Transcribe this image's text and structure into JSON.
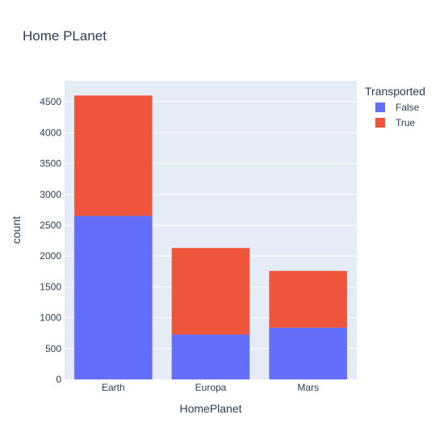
{
  "chart_data": {
    "type": "bar",
    "barmode": "stack",
    "title": "Home PLanet",
    "xlabel": "HomePlanet",
    "ylabel": "count",
    "categories": [
      "Earth",
      "Europa",
      "Mars"
    ],
    "series": [
      {
        "name": "False",
        "values": [
          2651,
          727,
          839
        ],
        "color": "#636efa"
      },
      {
        "name": "True",
        "values": [
          1951,
          1404,
          920
        ],
        "color": "#ef553b"
      }
    ],
    "ylim": [
      0,
      4842
    ],
    "yticks": [
      0,
      500,
      1000,
      1500,
      2000,
      2500,
      3000,
      3500,
      4000,
      4500
    ],
    "legend": {
      "title": "Transported",
      "placement": "right"
    },
    "grid": true,
    "colors": {
      "plot_bg": "#e5ecf6",
      "grid": "#ffffff",
      "text": "#2a3f5f"
    }
  }
}
